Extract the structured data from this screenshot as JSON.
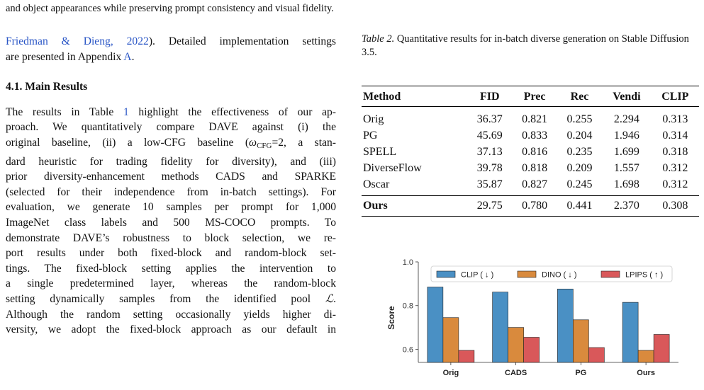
{
  "figure_caption_tail": "and object appearances while preserving prompt consistency and visual fidelity.",
  "left_column": {
    "para1": {
      "cite": "Friedman & Dieng, 2022",
      "line1_rest": "). Detailed implementation settings",
      "line2_start": "are presented in Appendix ",
      "appendix_link": "A",
      "line2_end": "."
    },
    "section_title": "4.1. Main Results",
    "para2": {
      "l1_a": "The results in Table ",
      "table_link": "1",
      "l1_b": " highlight the effectiveness of our ap-",
      "l2": "proach. We quantitatively compare DAVE against (i) the",
      "l3_a": "original baseline, (ii) a low-CFG baseline (",
      "omega": "ω",
      "cfg_sub": "CFG",
      "l3_b": "=2, a stan-",
      "l4": "dard heuristic for trading fidelity for diversity), and (iii)",
      "l5": "prior diversity-enhancement methods CADS and SPARKE",
      "l6": "(selected for their independence from in-batch settings). For",
      "l7": "evaluation, we generate 10 samples per prompt for 1,000",
      "l8": "ImageNet class labels and 500 MS-COCO prompts. To",
      "l9": "demonstrate DAVE’s robustness to block selection, we re-",
      "l10": "port results under both fixed-block and random-block set-",
      "l11": "tings. The fixed-block setting applies the intervention to",
      "l12": "a single predetermined layer, whereas the random-block",
      "l13_a": "setting dynamically samples from the identified pool ",
      "pool_symbol": "ℒ",
      "l13_b": ".",
      "l14": "Although the random setting occasionally yields higher di-",
      "l15": "versity, we adopt the fixed-block approach as our default in"
    }
  },
  "table2": {
    "caption_label": "Table 2.",
    "caption_text": " Quantitative results for in-batch diverse generation on Stable Diffusion 3.5.",
    "columns": [
      "Method",
      "FID",
      "Prec",
      "Rec",
      "Vendi",
      "CLIP"
    ],
    "rows": [
      [
        "Orig",
        "36.37",
        "0.821",
        "0.255",
        "2.294",
        "0.313"
      ],
      [
        "PG",
        "45.69",
        "0.833",
        "0.204",
        "1.946",
        "0.314"
      ],
      [
        "SPELL",
        "37.13",
        "0.816",
        "0.235",
        "1.699",
        "0.318"
      ],
      [
        "DiverseFlow",
        "39.78",
        "0.818",
        "0.209",
        "1.557",
        "0.312"
      ],
      [
        "Oscar",
        "35.87",
        "0.827",
        "0.245",
        "1.698",
        "0.312"
      ]
    ],
    "ours_row": [
      "Ours",
      "29.75",
      "0.780",
      "0.441",
      "2.370",
      "0.308"
    ]
  },
  "chart_data": {
    "type": "bar",
    "categories": [
      "Orig",
      "CADS",
      "PG",
      "Ours"
    ],
    "series": [
      {
        "name": "CLIP ( ↓ )",
        "color": "#4a90c4",
        "values": [
          0.885,
          0.862,
          0.876,
          0.815
        ]
      },
      {
        "name": "DINO ( ↓ )",
        "color": "#d98a3d",
        "values": [
          0.745,
          0.7,
          0.735,
          0.595
        ]
      },
      {
        "name": "LPIPS ( ↑ )",
        "color": "#d9585a",
        "values": [
          0.595,
          0.655,
          0.608,
          0.668
        ]
      }
    ],
    "ylabel": "Score",
    "ylim": [
      0.54,
      1.0
    ],
    "yticks": [
      "0.6",
      "0.8",
      "1.0"
    ],
    "legend_position": "top",
    "grid": false
  }
}
